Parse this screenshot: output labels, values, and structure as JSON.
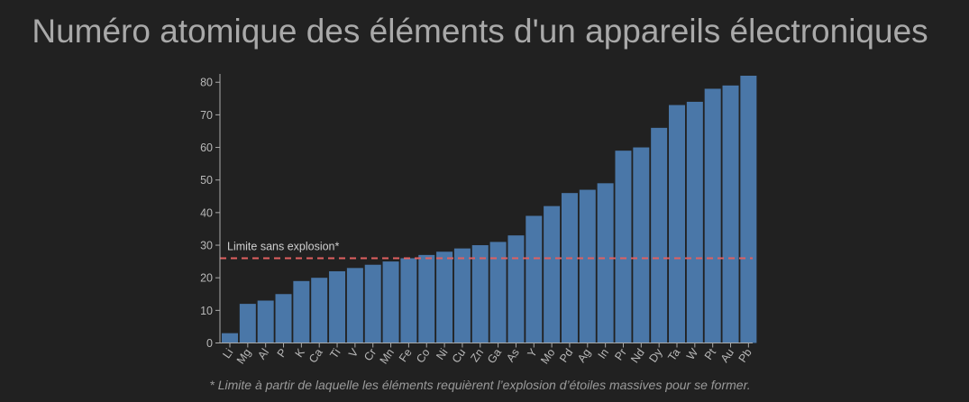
{
  "page": {
    "title": "Numéro atomique des éléments d'un appareils électroniques",
    "footnote": "* Limite à partir de laquelle les éléments requièrent l’explosion d’étoiles massives pour se former."
  },
  "colors": {
    "background": "#212121",
    "bar": "#4a77a8",
    "limit_line": "#e06060",
    "text": "#a9a9a9"
  },
  "chart_data": {
    "type": "bar",
    "title": "Numéro atomique des éléments d'un appareils électroniques",
    "xlabel": "",
    "ylabel": "",
    "categories": [
      "Li",
      "Mg",
      "Al",
      "P",
      "K",
      "Ca",
      "Ti",
      "V",
      "Cr",
      "Mn",
      "Fe",
      "Co",
      "Ni",
      "Cu",
      "Zn",
      "Ga",
      "As",
      "Y",
      "Mo",
      "Pd",
      "Ag",
      "In",
      "Pr",
      "Nd",
      "Dy",
      "Ta",
      "W",
      "Pt",
      "Au",
      "Pb"
    ],
    "values": [
      3,
      12,
      13,
      15,
      19,
      20,
      22,
      23,
      24,
      25,
      26,
      27,
      28,
      29,
      30,
      31,
      33,
      39,
      42,
      46,
      47,
      49,
      59,
      60,
      66,
      73,
      74,
      78,
      79,
      82
    ],
    "ylim": [
      0,
      82
    ],
    "yticks": [
      0,
      10,
      20,
      30,
      40,
      50,
      60,
      70,
      80
    ],
    "grid": false,
    "legend": "none",
    "reference_line": {
      "value": 26,
      "label": "Limite sans explosion*",
      "style": "dashed"
    }
  }
}
